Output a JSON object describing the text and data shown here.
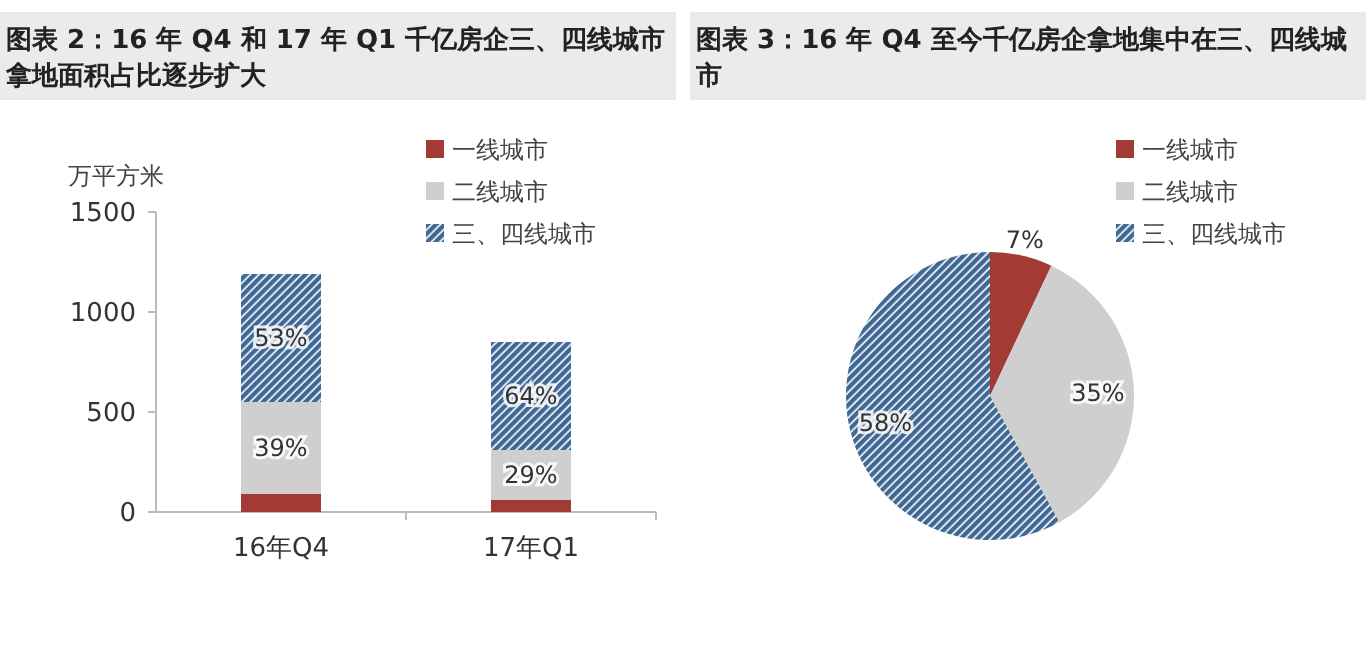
{
  "chart_data": [
    {
      "type": "bar",
      "title": "图表 2：16 年 Q4 和 17 年 Q1 千亿房企三、四线城市拿地面积占比逐步扩大",
      "ylabel": "万平方米",
      "categories": [
        "16年Q4",
        "17年Q1"
      ],
      "stacked": true,
      "ylim": [
        0,
        1500
      ],
      "yticks": [
        0,
        500,
        1000,
        1500
      ],
      "legend": "top right",
      "series": [
        {
          "name": "一线城市",
          "color": "#a33a36",
          "values": [
            90,
            60
          ]
        },
        {
          "name": "二线城市",
          "color": "#cfcfcf",
          "values": [
            460,
            250
          ]
        },
        {
          "name": "三、四线城市",
          "color": "#3f6894",
          "values": [
            640,
            540
          ]
        }
      ],
      "annotations": [
        "39%",
        "53%",
        "29%",
        "64%"
      ]
    },
    {
      "type": "pie",
      "title": "图表 3：16 年 Q4 至今千亿房企拿地集中在三、四线城市",
      "categories": [
        "一线城市",
        "二线城市",
        "三、四线城市"
      ],
      "values": [
        7,
        35,
        58
      ],
      "colors": [
        "#a33a36",
        "#cfcfcf",
        "#3f6894"
      ],
      "value_labels": [
        "7%",
        "35%",
        "58%"
      ],
      "legend": "top right"
    }
  ]
}
